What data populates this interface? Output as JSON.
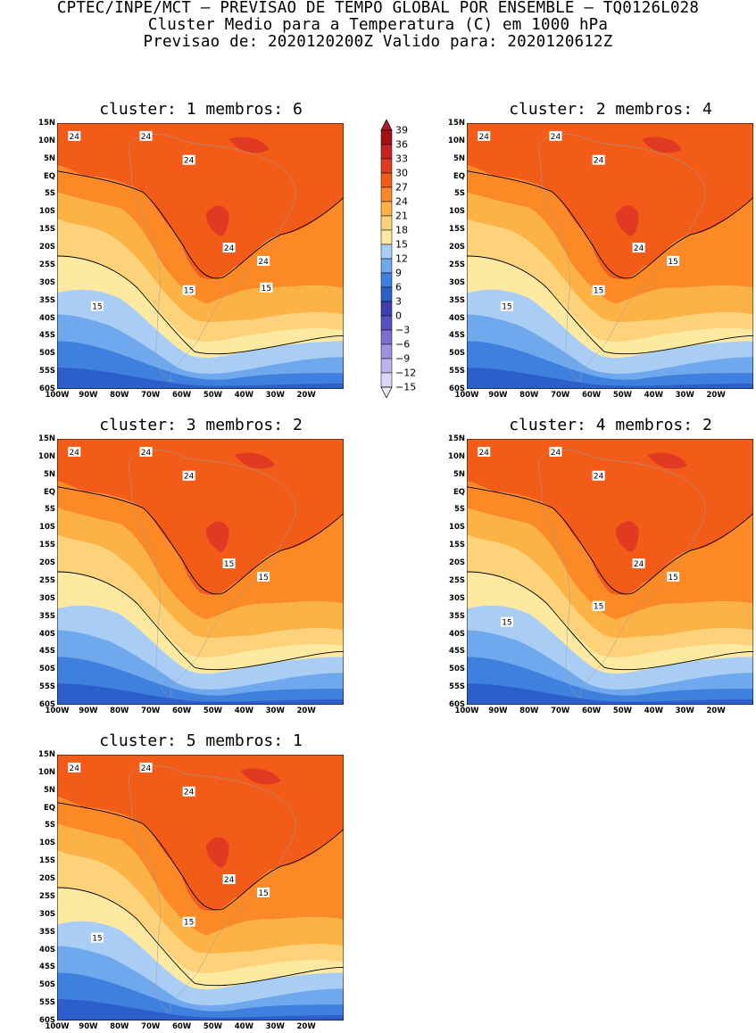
{
  "header": {
    "line1": "CPTEC/INPE/MCT – PREVISAO DE TEMPO GLOBAL POR ENSEMBLE – TQ0126L028",
    "line2": "Cluster Medio para a Temperatura (C) em 1000 hPa",
    "line3": "Previsao de: 2020120200Z   Valido para: 2020120612Z"
  },
  "lat_labels": [
    "15N",
    "10N",
    "5N",
    "EQ",
    "5S",
    "10S",
    "15S",
    "20S",
    "25S",
    "30S",
    "35S",
    "40S",
    "45S",
    "50S",
    "55S",
    "60S"
  ],
  "lon_labels": [
    "100W",
    "90W",
    "80W",
    "70W",
    "60W",
    "50W",
    "40W",
    "30W",
    "20W"
  ],
  "colorbar": {
    "labels": [
      "39",
      "36",
      "33",
      "30",
      "27",
      "24",
      "21",
      "18",
      "15",
      "12",
      "9",
      "6",
      "3",
      "0",
      "−3",
      "−6",
      "−9",
      "−12",
      "−15"
    ],
    "colors": [
      "#a50f15",
      "#c8211f",
      "#e03a22",
      "#f25c18",
      "#fb8a26",
      "#fdb245",
      "#fdd27a",
      "#fde9a0",
      "#a9cdf4",
      "#6fa8ec",
      "#3f7fde",
      "#2c5fca",
      "#3b3fb0",
      "#5a4fc0",
      "#7a70d2",
      "#9c92e0",
      "#bdb3ec",
      "#dcd5f6"
    ],
    "top_color": "#b2182b",
    "bottom_color": "#ece8fb"
  },
  "palette": {
    "t27_30": "#f25c18",
    "t24_27": "#fb8a26",
    "t21_24": "#fdb245",
    "t18_21": "#fdd27a",
    "t15_18": "#fde9a0",
    "t12_15": "#a9cdf4",
    "t9_12": "#6fa8ec",
    "t6_9": "#3f7fde",
    "t3_6": "#2c5fca",
    "t0_3": "#3b3fb0",
    "hot": "#e03a22"
  },
  "panels": [
    {
      "cluster_label": "cluster: 1   membros: 6",
      "contour_labels": [
        "24",
        "24",
        "24",
        "24",
        "24",
        "15",
        "15",
        "15"
      ]
    },
    {
      "cluster_label": "cluster: 2   membros: 4",
      "contour_labels": [
        "24",
        "24",
        "24",
        "24",
        "15",
        "15",
        "15"
      ]
    },
    {
      "cluster_label": "cluster: 3   membros: 2",
      "contour_labels": [
        "24",
        "24",
        "24",
        "15",
        "15"
      ]
    },
    {
      "cluster_label": "cluster: 4   membros: 2",
      "contour_labels": [
        "24",
        "24",
        "24",
        "24",
        "15",
        "15",
        "15"
      ]
    },
    {
      "cluster_label": "cluster: 5   membros: 1",
      "contour_labels": [
        "24",
        "24",
        "24",
        "24",
        "15",
        "15",
        "15"
      ]
    }
  ]
}
